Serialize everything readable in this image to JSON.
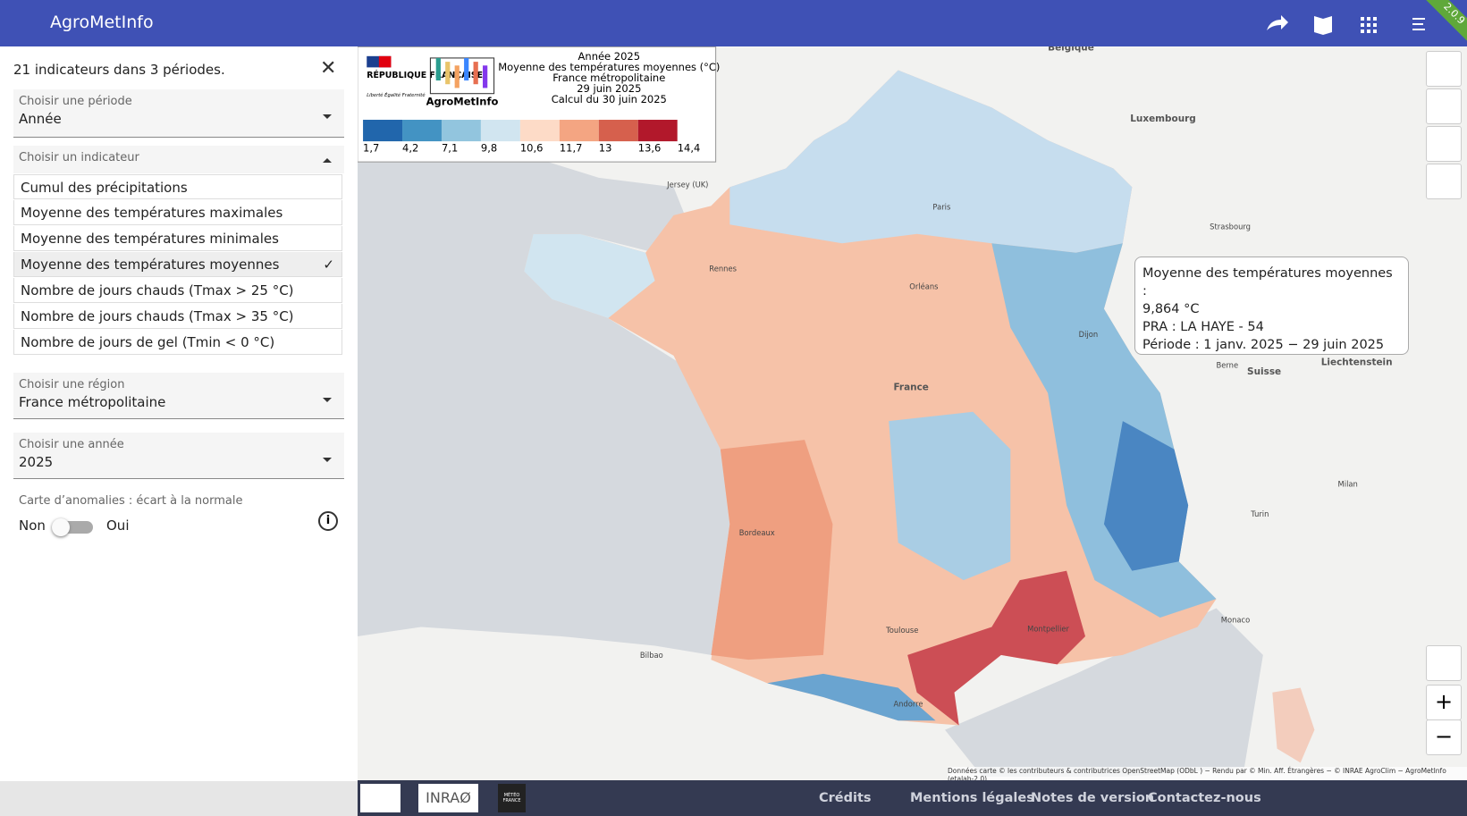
{
  "header": {
    "title": "AgroMetInfo",
    "version": "2.0.9"
  },
  "sidebar": {
    "summary": "21 indicateurs dans 3 périodes.",
    "period": {
      "label": "Choisir une période",
      "value": "Année"
    },
    "indicator": {
      "label": "Choisir un indicateur",
      "options": [
        {
          "label": "Cumul des précipitations"
        },
        {
          "label": "Moyenne des températures maximales"
        },
        {
          "label": "Moyenne des températures minimales"
        },
        {
          "label": "Moyenne des températures moyennes",
          "check": "✓"
        },
        {
          "label": "Nombre de jours chauds (Tmax > 25 °C)"
        },
        {
          "label": "Nombre de jours chauds (Tmax > 35 °C)"
        },
        {
          "label": "Nombre de jours de gel (Tmin < 0 °C)"
        }
      ]
    },
    "region": {
      "label": "Choisir une région",
      "value": "France métropolitaine"
    },
    "year": {
      "label": "Choisir une année",
      "value": "2025"
    },
    "anomaly": {
      "label": "Carte d’anomalies : écart à la normale",
      "off": "Non",
      "on": "Oui"
    }
  },
  "legend": {
    "republic": "RÉPUBLIQUE FRANÇAISE",
    "motto": "Liberté Égalité Fraternité",
    "logo": "AgroMetInfo",
    "lines": [
      "Année 2025",
      "Moyenne des températures moyennes (°C)",
      "France métropolitaine",
      "29 juin 2025",
      "Calcul du 30 juin 2025"
    ],
    "colors": [
      "#2166ac",
      "#4393c3",
      "#92c5de",
      "#d1e5f0",
      "#fddbc7",
      "#f4a582",
      "#d6604d",
      "#b2182b"
    ],
    "labels": [
      "1,7",
      "4,2",
      "7,1",
      "9,8",
      "10,6",
      "11,7",
      "13",
      "13,6",
      "14,4"
    ]
  },
  "tooltip": [
    "Moyenne des températures moyennes :",
    "9,864 °C",
    "PRA : LA HAYE - 54",
    "Période : 1 janv. 2025 − 29 juin 2025"
  ],
  "map_labels": [
    "Belgique",
    "Luxembourg",
    "France",
    "Suisse",
    "Liechtenstein",
    "Paris",
    "Bordeaux",
    "Toulouse",
    "Monaco",
    "Andorre",
    "Rennes",
    "Strasbourg",
    "Berne",
    "Jersey (UK)",
    "Bilbao",
    "Dijon",
    "Orléans",
    "Montpellier",
    "Turin",
    "Milan"
  ],
  "attribution": "Données carte © les contributeurs & contributrices OpenStreetMap (ODbL ) − Rendu par © Min. Aff. Étrangères − © INRAE AgroClim − AgroMetInfo (etalab-2.0)",
  "footer": {
    "logos": [
      "INRAØ",
      "MÉTÉO FRANCE"
    ],
    "links": [
      "Crédits",
      "Mentions légales",
      "Notes de version",
      "Contactez-nous"
    ]
  }
}
